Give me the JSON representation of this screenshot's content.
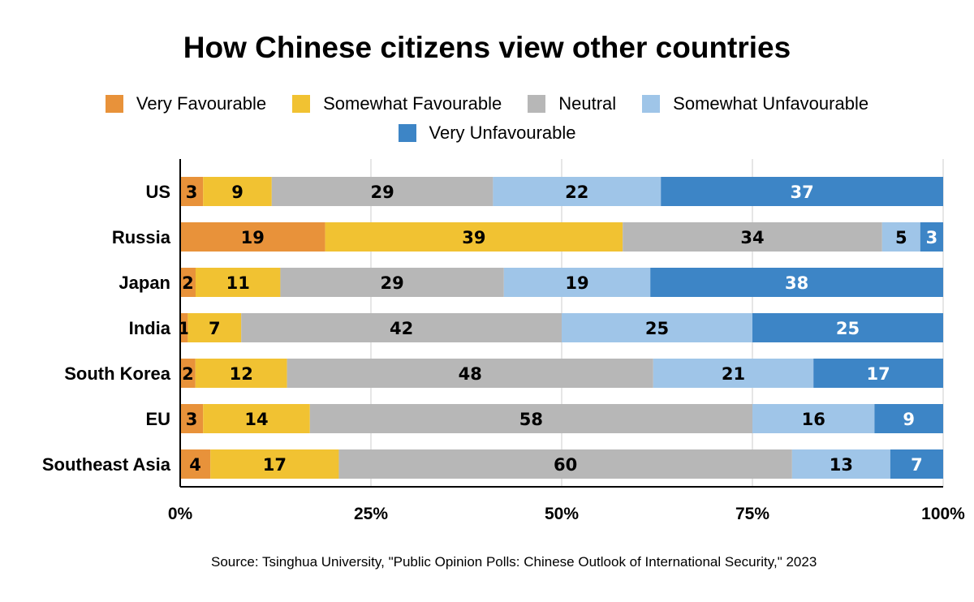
{
  "chart_data": {
    "type": "bar",
    "orientation": "horizontal",
    "stacked": "percent",
    "title": "How Chinese citizens view other countries",
    "categories": [
      "US",
      "Russia",
      "Japan",
      "India",
      "South Korea",
      "EU",
      "Southeast Asia"
    ],
    "series": [
      {
        "name": "Very Favourable",
        "color": "#e8923a",
        "values": [
          3,
          19,
          2,
          1,
          2,
          3,
          4
        ]
      },
      {
        "name": "Somewhat Favourable",
        "color": "#f1c232",
        "values": [
          9,
          39,
          11,
          7,
          12,
          14,
          17
        ]
      },
      {
        "name": "Neutral",
        "color": "#b7b7b7",
        "values": [
          29,
          34,
          29,
          42,
          48,
          58,
          60
        ]
      },
      {
        "name": "Somewhat Unfavourable",
        "color": "#9fc5e8",
        "values": [
          22,
          5,
          19,
          25,
          21,
          16,
          13
        ]
      },
      {
        "name": "Very Unfavourable",
        "color": "#3d85c6",
        "values": [
          37,
          3,
          38,
          25,
          17,
          9,
          7
        ]
      }
    ],
    "xticks": [
      "0%",
      "25%",
      "50%",
      "75%",
      "100%"
    ],
    "xlim": [
      0,
      100
    ],
    "grid": true,
    "legend_position": "top",
    "source": "Source: Tsinghua University, \"Public Opinion Polls: Chinese Outlook of International Security,\" 2023"
  }
}
